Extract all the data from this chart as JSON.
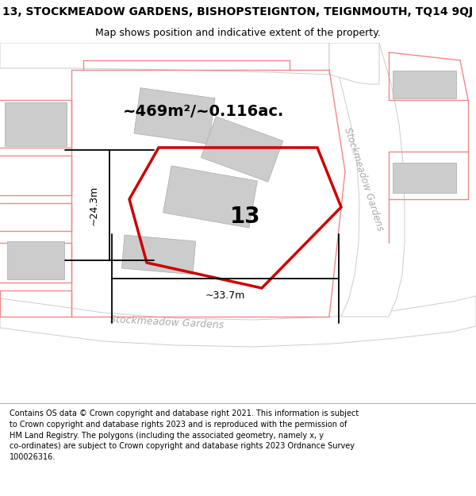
{
  "title_line1": "13, STOCKMEADOW GARDENS, BISHOPSTEIGNTON, TEIGNMOUTH, TQ14 9QJ",
  "title_line2": "Map shows position and indicative extent of the property.",
  "footer_text": "Contains OS data © Crown copyright and database right 2021. This information is subject to Crown copyright and database rights 2023 and is reproduced with the permission of HM Land Registry. The polygons (including the associated geometry, namely x, y co-ordinates) are subject to Crown copyright and database rights 2023 Ordnance Survey 100026316.",
  "map_bg": "#eeeeee",
  "road_white": "#ffffff",
  "road_edge": "#cccccc",
  "building_fill": "#cccccc",
  "building_edge": "#aaaaaa",
  "property_color": "#cc0000",
  "pink": "#f08888",
  "area_label": "~469m²/~0.116ac.",
  "number_label": "13",
  "width_label": "~33.7m",
  "height_label": "~24.3m",
  "street_bottom": "Stockmeadow Gardens",
  "street_right": "Stockmeadow Gardens",
  "title_fontsize": 10,
  "subtitle_fontsize": 9,
  "area_fontsize": 14,
  "number_fontsize": 20,
  "dim_fontsize": 9,
  "street_fontsize": 9
}
